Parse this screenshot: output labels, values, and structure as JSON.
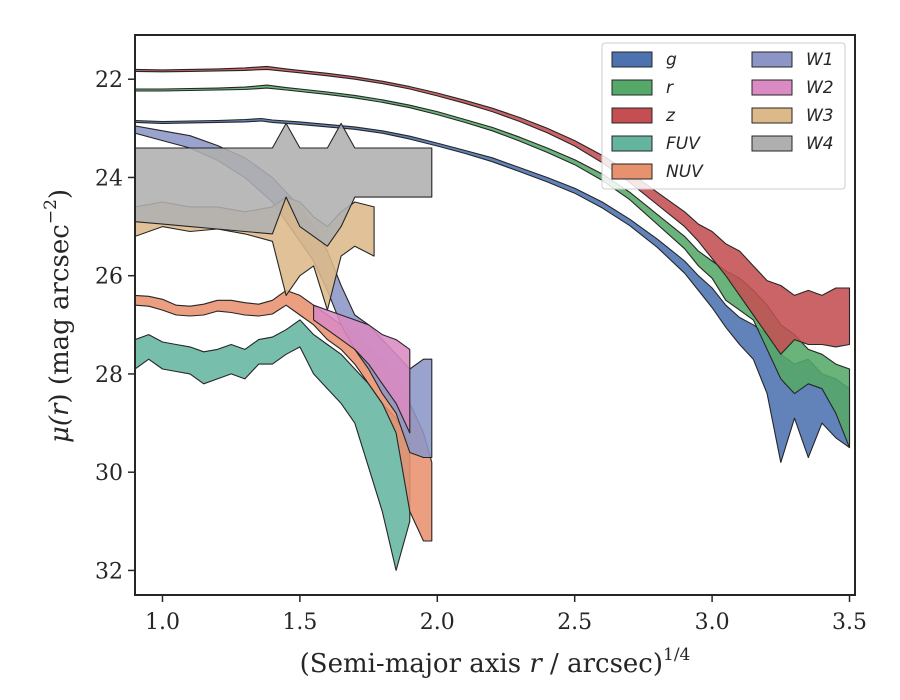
{
  "chart_data": {
    "type": "area",
    "xlabel_main": "(Semi-major axis ",
    "xlabel_var": "r",
    "xlabel_mid": " / arcsec)",
    "xlabel_sup": "1/4",
    "ylabel_main": "μ(",
    "ylabel_var": "r",
    "ylabel_end": ") (mag arcsec",
    "ylabel_sup": "−2",
    "ylabel_close": ")",
    "xlim": [
      0.9,
      3.52
    ],
    "ylim": [
      32.5,
      21.1
    ],
    "y_inverted": true,
    "x_ticks": [
      1.0,
      1.5,
      2.0,
      2.5,
      3.0,
      3.5
    ],
    "x_tick_labels": [
      "1.0",
      "1.5",
      "2.0",
      "2.5",
      "3.0",
      "3.5"
    ],
    "y_ticks": [
      22,
      24,
      26,
      28,
      30,
      32
    ],
    "y_tick_labels": [
      "22",
      "24",
      "26",
      "28",
      "30",
      "32"
    ],
    "grid": false,
    "legend_position": "top-right",
    "legend_columns": 2,
    "series": [
      {
        "name": "g",
        "color": "#4C72B0",
        "points": [
          [
            0.9,
            22.84,
            22.88
          ],
          [
            1.0,
            22.86,
            22.9
          ],
          [
            1.1,
            22.85,
            22.89
          ],
          [
            1.2,
            22.84,
            22.88
          ],
          [
            1.3,
            22.82,
            22.87
          ],
          [
            1.36,
            22.8,
            22.85
          ],
          [
            1.4,
            22.83,
            22.88
          ],
          [
            1.5,
            22.87,
            22.92
          ],
          [
            1.6,
            22.92,
            22.97
          ],
          [
            1.7,
            22.97,
            23.02
          ],
          [
            1.8,
            23.05,
            23.1
          ],
          [
            1.9,
            23.16,
            23.22
          ],
          [
            2.0,
            23.3,
            23.36
          ],
          [
            2.1,
            23.45,
            23.51
          ],
          [
            2.2,
            23.6,
            23.68
          ],
          [
            2.3,
            23.8,
            23.88
          ],
          [
            2.4,
            24.0,
            24.09
          ],
          [
            2.5,
            24.22,
            24.32
          ],
          [
            2.6,
            24.5,
            24.62
          ],
          [
            2.7,
            24.85,
            24.98
          ],
          [
            2.8,
            25.25,
            25.42
          ],
          [
            2.9,
            25.7,
            25.95
          ],
          [
            2.95,
            26.0,
            26.3
          ],
          [
            3.0,
            26.25,
            26.65
          ],
          [
            3.05,
            26.6,
            27.05
          ],
          [
            3.1,
            26.85,
            27.4
          ],
          [
            3.15,
            27.0,
            27.7
          ],
          [
            3.2,
            27.2,
            28.4
          ],
          [
            3.25,
            27.6,
            29.8
          ],
          [
            3.3,
            27.8,
            28.9
          ],
          [
            3.35,
            27.7,
            29.7
          ],
          [
            3.4,
            28.0,
            29.0
          ],
          [
            3.45,
            28.1,
            29.3
          ],
          [
            3.5,
            28.3,
            29.5
          ]
        ]
      },
      {
        "name": "r",
        "color": "#55A868",
        "points": [
          [
            0.9,
            22.2,
            22.24
          ],
          [
            1.0,
            22.2,
            22.24
          ],
          [
            1.1,
            22.19,
            22.23
          ],
          [
            1.2,
            22.18,
            22.22
          ],
          [
            1.3,
            22.16,
            22.21
          ],
          [
            1.38,
            22.12,
            22.18
          ],
          [
            1.45,
            22.17,
            22.22
          ],
          [
            1.5,
            22.2,
            22.25
          ],
          [
            1.6,
            22.26,
            22.31
          ],
          [
            1.7,
            22.33,
            22.38
          ],
          [
            1.8,
            22.42,
            22.47
          ],
          [
            1.9,
            22.53,
            22.58
          ],
          [
            2.0,
            22.66,
            22.72
          ],
          [
            2.1,
            22.82,
            22.88
          ],
          [
            2.2,
            22.98,
            23.05
          ],
          [
            2.3,
            23.18,
            23.26
          ],
          [
            2.4,
            23.4,
            23.49
          ],
          [
            2.5,
            23.64,
            23.74
          ],
          [
            2.6,
            23.93,
            24.06
          ],
          [
            2.7,
            24.3,
            24.45
          ],
          [
            2.8,
            24.75,
            24.95
          ],
          [
            2.9,
            25.2,
            25.45
          ],
          [
            2.95,
            25.5,
            25.8
          ],
          [
            3.0,
            25.7,
            26.05
          ],
          [
            3.05,
            25.9,
            26.5
          ],
          [
            3.1,
            26.05,
            26.7
          ],
          [
            3.15,
            26.3,
            26.9
          ],
          [
            3.2,
            26.6,
            27.5
          ],
          [
            3.25,
            27.0,
            28.1
          ],
          [
            3.3,
            27.2,
            28.4
          ],
          [
            3.35,
            27.5,
            28.2
          ],
          [
            3.4,
            27.6,
            28.3
          ],
          [
            3.45,
            27.8,
            28.8
          ],
          [
            3.5,
            27.9,
            29.5
          ]
        ]
      },
      {
        "name": "z",
        "color": "#C44E52",
        "points": [
          [
            0.9,
            21.8,
            21.84
          ],
          [
            1.0,
            21.81,
            21.85
          ],
          [
            1.1,
            21.8,
            21.84
          ],
          [
            1.2,
            21.79,
            21.83
          ],
          [
            1.3,
            21.77,
            21.82
          ],
          [
            1.38,
            21.74,
            21.8
          ],
          [
            1.45,
            21.79,
            21.84
          ],
          [
            1.5,
            21.82,
            21.87
          ],
          [
            1.6,
            21.88,
            21.93
          ],
          [
            1.7,
            21.95,
            22.0
          ],
          [
            1.8,
            22.04,
            22.09
          ],
          [
            1.9,
            22.15,
            22.2
          ],
          [
            2.0,
            22.28,
            22.34
          ],
          [
            2.1,
            22.43,
            22.49
          ],
          [
            2.2,
            22.59,
            22.66
          ],
          [
            2.3,
            22.78,
            22.86
          ],
          [
            2.4,
            23.0,
            23.09
          ],
          [
            2.5,
            23.25,
            23.36
          ],
          [
            2.6,
            23.55,
            23.7
          ],
          [
            2.7,
            23.9,
            24.1
          ],
          [
            2.8,
            24.3,
            24.55
          ],
          [
            2.9,
            24.7,
            25.0
          ],
          [
            2.95,
            24.95,
            25.3
          ],
          [
            3.0,
            25.1,
            25.65
          ],
          [
            3.05,
            25.35,
            26.0
          ],
          [
            3.1,
            25.5,
            26.4
          ],
          [
            3.15,
            25.8,
            26.8
          ],
          [
            3.2,
            26.1,
            27.2
          ],
          [
            3.25,
            26.2,
            27.6
          ],
          [
            3.3,
            26.4,
            27.3
          ],
          [
            3.35,
            26.3,
            27.4
          ],
          [
            3.4,
            26.4,
            27.4
          ],
          [
            3.45,
            26.25,
            27.45
          ],
          [
            3.5,
            26.25,
            27.4
          ]
        ]
      },
      {
        "name": "FUV",
        "color": "#64B5A0",
        "points": [
          [
            0.9,
            27.3,
            27.9
          ],
          [
            0.95,
            27.2,
            27.7
          ],
          [
            1.0,
            27.35,
            27.9
          ],
          [
            1.05,
            27.4,
            27.95
          ],
          [
            1.1,
            27.45,
            28.0
          ],
          [
            1.15,
            27.55,
            28.2
          ],
          [
            1.2,
            27.5,
            28.1
          ],
          [
            1.25,
            27.4,
            28.0
          ],
          [
            1.3,
            27.5,
            28.1
          ],
          [
            1.35,
            27.3,
            27.8
          ],
          [
            1.4,
            27.25,
            27.8
          ],
          [
            1.45,
            27.1,
            27.6
          ],
          [
            1.5,
            26.9,
            27.45
          ],
          [
            1.55,
            27.2,
            28.0
          ],
          [
            1.6,
            27.4,
            28.3
          ],
          [
            1.65,
            27.6,
            28.6
          ],
          [
            1.7,
            27.9,
            29.0
          ],
          [
            1.75,
            28.2,
            29.9
          ],
          [
            1.8,
            28.6,
            30.8
          ],
          [
            1.85,
            28.9,
            32.0
          ],
          [
            1.9,
            29.4,
            31.0
          ]
        ]
      },
      {
        "name": "NUV",
        "color": "#E8916E",
        "points": [
          [
            0.9,
            26.4,
            26.6
          ],
          [
            0.95,
            26.42,
            26.62
          ],
          [
            1.0,
            26.48,
            26.7
          ],
          [
            1.05,
            26.6,
            26.8
          ],
          [
            1.1,
            26.62,
            26.82
          ],
          [
            1.15,
            26.58,
            26.8
          ],
          [
            1.2,
            26.5,
            26.72
          ],
          [
            1.25,
            26.5,
            26.75
          ],
          [
            1.3,
            26.55,
            26.8
          ],
          [
            1.35,
            26.58,
            26.82
          ],
          [
            1.4,
            26.5,
            26.78
          ],
          [
            1.45,
            26.3,
            26.6
          ],
          [
            1.5,
            26.4,
            26.8
          ],
          [
            1.55,
            26.6,
            27.0
          ],
          [
            1.6,
            26.8,
            27.3
          ],
          [
            1.65,
            27.0,
            27.5
          ],
          [
            1.7,
            27.2,
            27.8
          ],
          [
            1.75,
            27.5,
            28.2
          ],
          [
            1.8,
            27.7,
            28.6
          ],
          [
            1.85,
            28.1,
            29.2
          ],
          [
            1.9,
            28.6,
            30.8
          ],
          [
            1.95,
            29.2,
            31.4
          ],
          [
            1.98,
            29.8,
            31.4
          ]
        ]
      },
      {
        "name": "W1",
        "color": "#8C96C6",
        "points": [
          [
            0.9,
            22.95,
            23.1
          ],
          [
            1.0,
            23.05,
            23.25
          ],
          [
            1.1,
            23.15,
            23.4
          ],
          [
            1.2,
            23.35,
            23.65
          ],
          [
            1.3,
            23.6,
            24.0
          ],
          [
            1.4,
            24.0,
            24.5
          ],
          [
            1.5,
            24.6,
            25.3
          ],
          [
            1.55,
            25.0,
            25.7
          ],
          [
            1.6,
            25.5,
            26.3
          ],
          [
            1.65,
            26.2,
            27.0
          ],
          [
            1.7,
            26.8,
            27.5
          ],
          [
            1.75,
            27.0,
            27.9
          ],
          [
            1.8,
            27.3,
            28.4
          ],
          [
            1.85,
            27.6,
            28.8
          ],
          [
            1.9,
            27.9,
            29.6
          ],
          [
            1.95,
            27.7,
            29.7
          ],
          [
            1.98,
            27.7,
            29.7
          ]
        ]
      },
      {
        "name": "W2",
        "color": "#DA8BC3",
        "points": [
          [
            1.55,
            26.6,
            26.9
          ],
          [
            1.6,
            26.7,
            27.1
          ],
          [
            1.65,
            26.8,
            27.3
          ],
          [
            1.7,
            26.9,
            27.5
          ],
          [
            1.75,
            27.0,
            27.8
          ],
          [
            1.8,
            27.2,
            28.2
          ],
          [
            1.85,
            27.3,
            28.6
          ],
          [
            1.9,
            27.5,
            29.2
          ]
        ]
      },
      {
        "name": "W3",
        "color": "#DDB98A",
        "points": [
          [
            0.9,
            24.6,
            25.2
          ],
          [
            1.0,
            24.5,
            25.0
          ],
          [
            1.1,
            24.6,
            25.1
          ],
          [
            1.2,
            24.6,
            25.05
          ],
          [
            1.3,
            24.7,
            25.15
          ],
          [
            1.4,
            24.6,
            25.3
          ],
          [
            1.45,
            24.4,
            26.4
          ],
          [
            1.5,
            24.5,
            26.0
          ],
          [
            1.55,
            24.8,
            25.8
          ],
          [
            1.6,
            25.0,
            26.7
          ],
          [
            1.65,
            24.7,
            25.6
          ],
          [
            1.7,
            24.5,
            25.4
          ],
          [
            1.77,
            24.6,
            25.6
          ]
        ]
      },
      {
        "name": "W4",
        "color": "#AFAFAF",
        "points": [
          [
            0.9,
            23.4,
            24.9
          ],
          [
            1.0,
            23.4,
            24.95
          ],
          [
            1.1,
            23.4,
            25.0
          ],
          [
            1.2,
            23.4,
            25.05
          ],
          [
            1.3,
            23.4,
            25.1
          ],
          [
            1.4,
            23.4,
            25.15
          ],
          [
            1.45,
            22.9,
            24.4
          ],
          [
            1.5,
            23.4,
            25.0
          ],
          [
            1.6,
            23.4,
            25.4
          ],
          [
            1.65,
            22.9,
            25.0
          ],
          [
            1.7,
            23.4,
            24.4
          ],
          [
            1.8,
            23.4,
            24.4
          ],
          [
            1.9,
            23.4,
            24.4
          ],
          [
            1.98,
            23.4,
            24.4
          ]
        ]
      }
    ],
    "legend_order": [
      "g",
      "r",
      "z",
      "FUV",
      "NUV",
      "W1",
      "W2",
      "W3",
      "W4"
    ],
    "legend_display": [
      {
        "key": "g",
        "text": "g"
      },
      {
        "key": "r",
        "text": "r"
      },
      {
        "key": "z",
        "text": "z"
      },
      {
        "key": "FUV",
        "text": "FUV"
      },
      {
        "key": "NUV",
        "text": "NUV"
      },
      {
        "key": "W1",
        "text": "W1"
      },
      {
        "key": "W2",
        "text": "W2"
      },
      {
        "key": "W3",
        "text": "W3"
      },
      {
        "key": "W4",
        "text": "W4"
      }
    ]
  }
}
